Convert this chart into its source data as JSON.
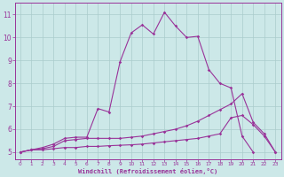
{
  "xlabel": "Windchill (Refroidissement éolien,°C)",
  "background_color": "#cce8e8",
  "line_color": "#993399",
  "grid_color": "#aacccc",
  "xlim": [
    -0.5,
    23.5
  ],
  "ylim": [
    4.7,
    11.5
  ],
  "yticks": [
    5,
    6,
    7,
    8,
    9,
    10,
    11
  ],
  "xticks": [
    0,
    1,
    2,
    3,
    4,
    5,
    6,
    7,
    8,
    9,
    10,
    11,
    12,
    13,
    14,
    15,
    16,
    17,
    18,
    19,
    20,
    21,
    22,
    23
  ],
  "line1_x": [
    0,
    1,
    2,
    3,
    4,
    5,
    6,
    7,
    8,
    9,
    10,
    11,
    12,
    13,
    14,
    15,
    16,
    17,
    18,
    19,
    20,
    21,
    22,
    23
  ],
  "line1_y": [
    5.0,
    5.1,
    5.1,
    5.15,
    5.2,
    5.2,
    5.25,
    5.25,
    5.28,
    5.3,
    5.32,
    5.35,
    5.4,
    5.45,
    5.5,
    5.55,
    5.6,
    5.7,
    5.8,
    6.5,
    6.6,
    6.2,
    5.7,
    5.0
  ],
  "line2_x": [
    0,
    1,
    2,
    3,
    4,
    5,
    6,
    7,
    8,
    9,
    10,
    11,
    12,
    13,
    14,
    15,
    16,
    17,
    18,
    19,
    20,
    21,
    22,
    23
  ],
  "line2_y": [
    5.0,
    5.1,
    5.15,
    5.25,
    5.5,
    5.55,
    5.6,
    5.6,
    5.6,
    5.6,
    5.65,
    5.7,
    5.8,
    5.9,
    6.0,
    6.15,
    6.35,
    6.6,
    6.85,
    7.1,
    7.55,
    6.3,
    5.8,
    5.0
  ],
  "line3_x": [
    0,
    1,
    2,
    3,
    4,
    5,
    6,
    7,
    8,
    9,
    10,
    11,
    12,
    13,
    14,
    15,
    16,
    17,
    18,
    19,
    20,
    21
  ],
  "line3_y": [
    5.0,
    5.1,
    5.2,
    5.35,
    5.6,
    5.65,
    5.65,
    6.9,
    6.75,
    8.95,
    10.2,
    10.55,
    10.15,
    11.1,
    10.5,
    10.0,
    10.05,
    8.6,
    8.0,
    7.8,
    5.7,
    5.0
  ]
}
